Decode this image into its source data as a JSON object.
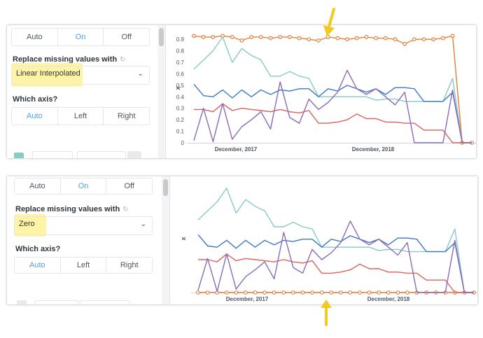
{
  "colors": {
    "accent": "#509ee3",
    "orange": "#e67e3b",
    "teal": "#87cac6",
    "blue": "#3d79c6",
    "red": "#d9625e",
    "purple": "#8b6ab8",
    "arrow": "#f2c91c",
    "highlight": "#fff3a6"
  },
  "top": {
    "axis_buttons": [
      "Auto",
      "On",
      "Off"
    ],
    "axis_active": 1,
    "missing_label": "Replace missing values with",
    "missing_value": "Linear Interpolated",
    "which_axis_label": "Which axis?",
    "which_axis_options": [
      "Auto",
      "Left",
      "Right"
    ],
    "which_axis_active": 0,
    "chart_ylabel": "x",
    "chart_xticks": [
      "December, 2017",
      "December, 2018"
    ]
  },
  "bottom": {
    "axis_buttons": [
      "Auto",
      "On",
      "Off"
    ],
    "axis_active": 1,
    "missing_label": "Replace missing values with",
    "missing_value": "Zero",
    "which_axis_label": "Which axis?",
    "which_axis_options": [
      "Auto",
      "Left",
      "Right"
    ],
    "which_axis_active": 0,
    "chart_ylabel": "x",
    "chart_xticks": [
      "December, 2017",
      "December, 2018"
    ]
  },
  "chart_data": [
    {
      "type": "line",
      "ylabel": "x",
      "ylim": [
        0,
        0.95
      ],
      "yticks": [
        0,
        0.1,
        0.2,
        0.3,
        0.4,
        0.5,
        0.6,
        0.7,
        0.8,
        0.9
      ],
      "x_tick_labels": [
        "December, 2017",
        "December, 2018"
      ],
      "series": [
        {
          "color": "orange",
          "markers": true,
          "values": [
            0.93,
            0.92,
            0.92,
            0.93,
            0.92,
            0.89,
            0.92,
            0.92,
            0.91,
            0.92,
            0.92,
            0.91,
            0.9,
            0.89,
            0.92,
            0.91,
            0.9,
            0.91,
            0.92,
            0.91,
            0.91,
            0.9,
            0.86,
            0.9,
            0.9,
            0.9,
            0.91,
            0.93,
            0.0,
            0.0
          ]
        },
        {
          "color": "teal",
          "markers": false,
          "values": [
            0.64,
            0.72,
            0.8,
            0.92,
            0.7,
            0.82,
            0.76,
            0.72,
            0.58,
            0.58,
            0.62,
            0.58,
            0.56,
            0.4,
            0.4,
            0.4,
            0.4,
            0.4,
            0.4,
            0.37,
            0.38,
            0.38,
            0.36,
            0.36,
            0.36,
            0.36,
            0.36,
            0.56,
            0.0,
            0.0
          ]
        },
        {
          "color": "blue",
          "markers": false,
          "values": [
            0.51,
            0.41,
            0.4,
            0.46,
            0.39,
            0.46,
            0.4,
            0.46,
            0.42,
            0.46,
            0.45,
            0.47,
            0.47,
            0.4,
            0.47,
            0.45,
            0.5,
            0.47,
            0.44,
            0.47,
            0.42,
            0.48,
            0.48,
            0.47,
            0.36,
            0.36,
            0.36,
            0.44,
            0.0,
            0.0
          ]
        },
        {
          "color": "red",
          "markers": false,
          "values": [
            0.29,
            0.29,
            0.27,
            0.34,
            0.28,
            0.3,
            0.29,
            0.28,
            0.27,
            0.29,
            0.27,
            0.26,
            0.28,
            0.17,
            0.17,
            0.18,
            0.2,
            0.25,
            0.21,
            0.21,
            0.18,
            0.18,
            0.17,
            0.17,
            0.11,
            0.11,
            0.11,
            0.0,
            0.0,
            0.0
          ]
        },
        {
          "color": "purple",
          "markers": false,
          "values": [
            0.02,
            0.3,
            0.01,
            0.34,
            0.03,
            0.14,
            0.2,
            0.27,
            0.12,
            0.53,
            0.22,
            0.17,
            0.38,
            0.29,
            0.35,
            0.44,
            0.63,
            0.47,
            0.42,
            0.47,
            0.4,
            0.33,
            0.44,
            0.0,
            0.0,
            0.0,
            0.0,
            0.46,
            0.0,
            0.0
          ]
        }
      ]
    },
    {
      "type": "line",
      "ylabel": "x",
      "ylim": [
        0,
        0.95
      ],
      "x_tick_labels": [
        "December, 2017",
        "December, 2018"
      ],
      "series": [
        {
          "color": "orange",
          "markers": true,
          "values": [
            0,
            0,
            0,
            0,
            0,
            0,
            0,
            0,
            0,
            0,
            0,
            0,
            0,
            0,
            0,
            0,
            0,
            0,
            0,
            0,
            0,
            0,
            0,
            0,
            0,
            0,
            0,
            0,
            0,
            0
          ]
        },
        {
          "color": "teal",
          "markers": false,
          "values": [
            0.64,
            0.72,
            0.8,
            0.92,
            0.7,
            0.82,
            0.76,
            0.72,
            0.58,
            0.58,
            0.62,
            0.58,
            0.56,
            0.4,
            0.4,
            0.4,
            0.4,
            0.4,
            0.4,
            0.37,
            0.38,
            0.38,
            0.36,
            0.36,
            0.36,
            0.36,
            0.36,
            0.56,
            0.0,
            0.0
          ]
        },
        {
          "color": "blue",
          "markers": false,
          "values": [
            0.51,
            0.41,
            0.4,
            0.46,
            0.39,
            0.46,
            0.4,
            0.46,
            0.42,
            0.46,
            0.45,
            0.47,
            0.47,
            0.4,
            0.47,
            0.45,
            0.5,
            0.47,
            0.44,
            0.47,
            0.42,
            0.48,
            0.48,
            0.47,
            0.36,
            0.36,
            0.36,
            0.44,
            0.0,
            0.0
          ]
        },
        {
          "color": "red",
          "markers": false,
          "values": [
            0.29,
            0.29,
            0.27,
            0.34,
            0.28,
            0.3,
            0.29,
            0.28,
            0.27,
            0.29,
            0.27,
            0.26,
            0.28,
            0.17,
            0.17,
            0.18,
            0.2,
            0.25,
            0.21,
            0.21,
            0.18,
            0.18,
            0.17,
            0.17,
            0.11,
            0.11,
            0.11,
            0.0,
            0.0,
            0.0
          ]
        },
        {
          "color": "purple",
          "markers": false,
          "values": [
            0.02,
            0.3,
            0.01,
            0.34,
            0.03,
            0.14,
            0.2,
            0.27,
            0.12,
            0.53,
            0.22,
            0.17,
            0.38,
            0.29,
            0.35,
            0.44,
            0.63,
            0.47,
            0.42,
            0.47,
            0.4,
            0.33,
            0.44,
            0.0,
            0.0,
            0.0,
            0.0,
            0.46,
            0.0,
            0.0
          ]
        }
      ]
    }
  ]
}
